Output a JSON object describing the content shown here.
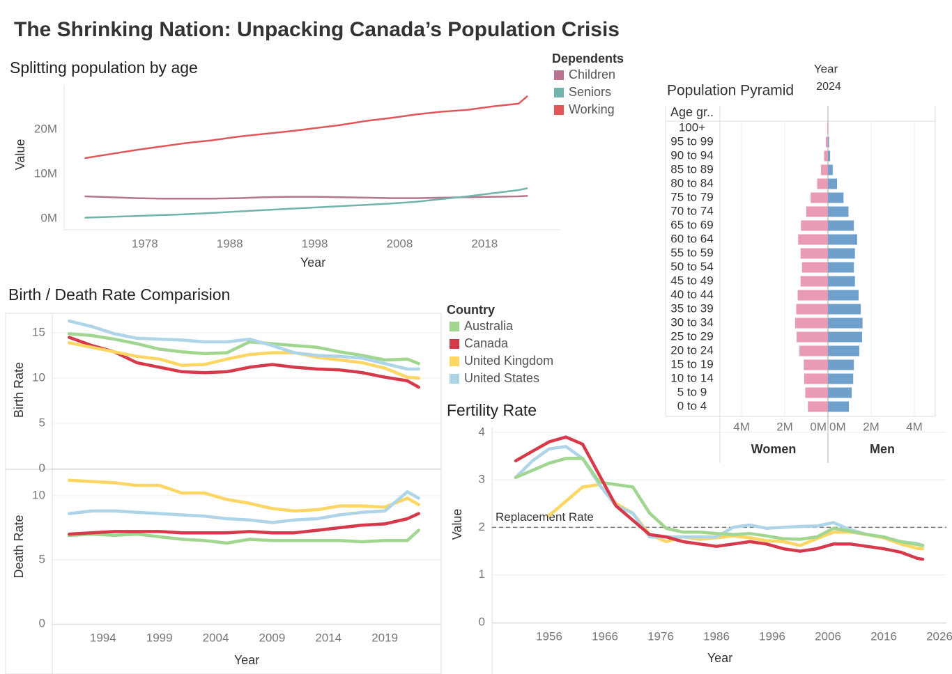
{
  "title": "The Shrinking Nation: Unpacking Canada’s Population Crisis",
  "chart_data": [
    {
      "type": "line",
      "title": "Splitting population by age",
      "x_label": "Year",
      "y_label": "Value",
      "legend_title": "Dependents",
      "x": [
        1971,
        1974,
        1977,
        1980,
        1983,
        1986,
        1989,
        1992,
        1995,
        1998,
        2001,
        2004,
        2007,
        2010,
        2013,
        2016,
        2019,
        2022,
        2023
      ],
      "series": [
        {
          "name": "Children",
          "color": "#b6738f",
          "values": [
            5000000,
            4800000,
            4600000,
            4500000,
            4500000,
            4500000,
            4600000,
            4800000,
            4900000,
            4900000,
            4800000,
            4700000,
            4600000,
            4600000,
            4700000,
            4800000,
            4900000,
            5000000,
            5100000
          ]
        },
        {
          "name": "Seniors",
          "color": "#72b4ab",
          "values": [
            200000,
            400000,
            600000,
            800000,
            1000000,
            1300000,
            1600000,
            1900000,
            2200000,
            2500000,
            2800000,
            3100000,
            3400000,
            3800000,
            4400000,
            5000000,
            5700000,
            6400000,
            6800000
          ]
        },
        {
          "name": "Working",
          "color": "#e15759",
          "values": [
            13600000,
            14500000,
            15400000,
            16200000,
            17000000,
            17600000,
            18400000,
            19000000,
            19600000,
            20300000,
            21000000,
            21900000,
            22600000,
            23400000,
            24000000,
            24400000,
            25200000,
            25800000,
            27400000
          ]
        }
      ],
      "xlim": [
        1968.5,
        2027
      ],
      "xticks": [
        1978,
        1988,
        1998,
        2008,
        2018
      ],
      "ylim": [
        -2500000,
        30000000
      ],
      "yticks": [
        {
          "value": 0,
          "label": "0M"
        },
        {
          "value": 10000000,
          "label": "10M"
        },
        {
          "value": 20000000,
          "label": "20M"
        }
      ],
      "grid": false
    },
    {
      "type": "pyramid",
      "title": "Population Pyramid",
      "filter_label": "Year",
      "filter_value": "2024",
      "category_label": "Age gr..",
      "categories": [
        "100+",
        "95 to 99",
        "90 to 94",
        "85 to 89",
        "80 to 84",
        "75 to 79",
        "70 to 74",
        "65 to 69",
        "60 to 64",
        "55 to 59",
        "50 to 54",
        "45 to 49",
        "40 to 44",
        "35 to 39",
        "30 to 34",
        "25 to 29",
        "20 to 24",
        "15 to 19",
        "10 to 14",
        "5 to 9",
        "0 to 4"
      ],
      "series": [
        {
          "name": "Women",
          "color": "#e89ab6",
          "values": [
            30000,
            100000,
            180000,
            320000,
            500000,
            800000,
            1000000,
            1250000,
            1380000,
            1270000,
            1200000,
            1270000,
            1400000,
            1470000,
            1520000,
            1450000,
            1320000,
            1120000,
            1100000,
            1050000,
            930000
          ]
        },
        {
          "name": "Men",
          "color": "#6f9fcb",
          "values": [
            10000,
            50000,
            100000,
            220000,
            420000,
            720000,
            950000,
            1200000,
            1350000,
            1250000,
            1200000,
            1250000,
            1420000,
            1520000,
            1600000,
            1580000,
            1450000,
            1200000,
            1170000,
            1100000,
            970000
          ]
        }
      ],
      "xlim": [
        0,
        5000000
      ],
      "xticks": [
        {
          "value": 0,
          "label": "0M"
        },
        {
          "value": 2000000,
          "label": "2M"
        },
        {
          "value": 4000000,
          "label": "4M"
        }
      ]
    },
    {
      "type": "line",
      "title": "Birth / Death Rate Comparision",
      "y_label": "Birth Rate",
      "legend_title": "Country",
      "x": [
        1991,
        1993,
        1995,
        1997,
        1999,
        2001,
        2003,
        2005,
        2007,
        2009,
        2011,
        2013,
        2015,
        2017,
        2019,
        2021,
        2022
      ],
      "series": [
        {
          "name": "Australia",
          "color": "#a0d68f",
          "values": [
            14.9,
            14.7,
            14.3,
            13.8,
            13.2,
            12.9,
            12.7,
            12.8,
            14.0,
            13.8,
            13.6,
            13.4,
            12.9,
            12.5,
            12.0,
            12.1,
            11.6
          ]
        },
        {
          "name": "Canada",
          "color": "#d63a4a",
          "values": [
            14.5,
            13.6,
            12.9,
            11.7,
            11.2,
            10.7,
            10.6,
            10.7,
            11.2,
            11.5,
            11.2,
            11.0,
            10.9,
            10.6,
            10.1,
            9.7,
            9.0
          ]
        },
        {
          "name": "United Kingdom",
          "color": "#fdd663",
          "values": [
            13.9,
            13.4,
            12.9,
            12.4,
            12.1,
            11.4,
            11.5,
            12.1,
            12.6,
            12.8,
            12.8,
            12.3,
            12.0,
            11.7,
            11.1,
            10.1,
            10.0
          ]
        },
        {
          "name": "United States",
          "color": "#aed4e8",
          "values": [
            16.3,
            15.7,
            14.9,
            14.4,
            14.3,
            14.2,
            14.0,
            14.0,
            14.3,
            13.6,
            12.8,
            12.5,
            12.4,
            12.2,
            11.6,
            11.0,
            11.0
          ]
        }
      ],
      "xlim": [
        1989.5,
        2024
      ],
      "ylim": [
        0,
        17
      ],
      "yticks": [
        0,
        5,
        10,
        15
      ],
      "grid": true
    },
    {
      "type": "line",
      "y_label": "Death Rate",
      "x_label": "Year",
      "x": [
        1991,
        1993,
        1995,
        1997,
        1999,
        2001,
        2003,
        2005,
        2007,
        2009,
        2011,
        2013,
        2015,
        2017,
        2019,
        2021,
        2022
      ],
      "series": [
        {
          "color": "#a0d68f",
          "values": [
            6.9,
            7.0,
            6.9,
            7.0,
            6.8,
            6.6,
            6.5,
            6.3,
            6.6,
            6.5,
            6.5,
            6.5,
            6.5,
            6.4,
            6.5,
            6.5,
            7.3
          ]
        },
        {
          "color": "#d63a4a",
          "values": [
            7.0,
            7.1,
            7.2,
            7.2,
            7.2,
            7.1,
            7.1,
            7.1,
            7.2,
            7.1,
            7.1,
            7.3,
            7.5,
            7.7,
            7.8,
            8.2,
            8.6
          ]
        },
        {
          "color": "#fdd663",
          "values": [
            11.2,
            11.1,
            11.0,
            10.8,
            10.8,
            10.2,
            10.2,
            9.7,
            9.4,
            9.0,
            8.8,
            8.9,
            9.2,
            9.2,
            9.1,
            9.8,
            9.3
          ]
        },
        {
          "color": "#aed4e8",
          "values": [
            8.6,
            8.8,
            8.8,
            8.7,
            8.6,
            8.5,
            8.4,
            8.2,
            8.1,
            7.9,
            8.1,
            8.2,
            8.5,
            8.7,
            8.8,
            10.3,
            9.8
          ]
        }
      ],
      "xlim": [
        1989.5,
        2024
      ],
      "xticks": [
        1994,
        1999,
        2004,
        2009,
        2014,
        2019
      ],
      "ylim": [
        0,
        12
      ],
      "yticks": [
        0,
        5,
        10
      ],
      "grid": true
    },
    {
      "type": "line",
      "title": "Fertility Rate",
      "x_label": "Year",
      "y_label": "Value",
      "x": [
        1950,
        1953,
        1956,
        1959,
        1962,
        1965,
        1968,
        1971,
        1974,
        1977,
        1980,
        1983,
        1986,
        1989,
        1992,
        1995,
        1998,
        2001,
        2004,
        2007,
        2010,
        2013,
        2016,
        2019,
        2022,
        2023
      ],
      "series": [
        {
          "color": "#fdd663",
          "values": [
            null,
            null,
            2.25,
            2.55,
            2.85,
            2.9,
            2.5,
            2.3,
            1.85,
            1.7,
            1.8,
            1.75,
            1.78,
            1.82,
            1.78,
            1.72,
            1.7,
            1.62,
            1.76,
            1.9,
            1.9,
            1.85,
            1.78,
            1.65,
            1.56,
            1.55
          ]
        },
        {
          "color": "#aed4e8",
          "values": [
            3.05,
            3.4,
            3.65,
            3.7,
            3.45,
            2.9,
            2.45,
            2.3,
            1.8,
            1.8,
            1.8,
            1.8,
            1.8,
            2.0,
            2.05,
            1.98,
            2.0,
            2.02,
            2.03,
            2.1,
            1.95,
            1.85,
            1.8,
            1.7,
            1.66,
            1.62
          ]
        },
        {
          "color": "#a0d68f",
          "values": [
            3.05,
            3.2,
            3.35,
            3.45,
            3.45,
            2.95,
            2.9,
            2.85,
            2.3,
            1.98,
            1.9,
            1.9,
            1.87,
            1.85,
            1.87,
            1.82,
            1.76,
            1.75,
            1.8,
            1.98,
            1.92,
            1.85,
            1.8,
            1.7,
            1.64,
            1.62
          ]
        },
        {
          "color": "#d63a4a",
          "values": [
            3.4,
            3.6,
            3.8,
            3.9,
            3.75,
            3.1,
            2.45,
            2.15,
            1.85,
            1.8,
            1.7,
            1.65,
            1.6,
            1.65,
            1.7,
            1.65,
            1.55,
            1.5,
            1.55,
            1.65,
            1.65,
            1.6,
            1.55,
            1.48,
            1.35,
            1.33
          ]
        }
      ],
      "xlim": [
        1945.75,
        2027.25
      ],
      "xticks": [
        1956,
        1966,
        1976,
        1986,
        1996,
        2006,
        2016,
        2026
      ],
      "ylim": [
        0,
        4.1
      ],
      "yticks": [
        0,
        1,
        2,
        3,
        4
      ],
      "grid": true,
      "reference_line": {
        "value": 2,
        "label": "Replacement Rate"
      }
    }
  ]
}
